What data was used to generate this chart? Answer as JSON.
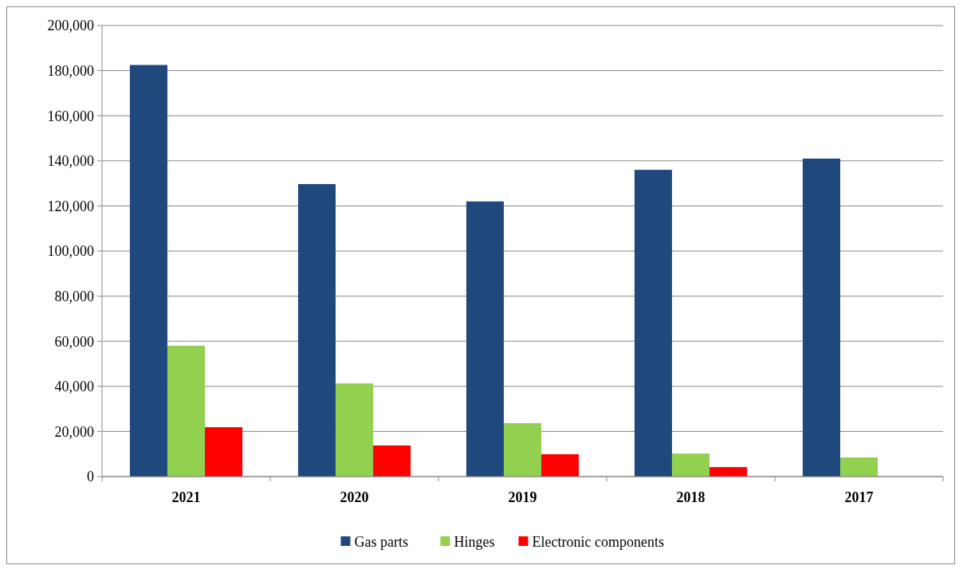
{
  "chart_data": {
    "type": "bar",
    "categories": [
      "2021",
      "2020",
      "2019",
      "2018",
      "2017"
    ],
    "series": [
      {
        "name": "Gas parts",
        "color": "#1f497d",
        "values": [
          182500,
          129700,
          122000,
          136000,
          141000
        ]
      },
      {
        "name": "Hinges",
        "color": "#92d050",
        "values": [
          58000,
          41300,
          23700,
          10200,
          8500
        ]
      },
      {
        "name": "Electronic components",
        "color": "#ff0000",
        "values": [
          21900,
          13800,
          9900,
          4200,
          null
        ]
      }
    ],
    "ylim": [
      0,
      200000
    ],
    "yticks": [
      {
        "value": 0,
        "label": "0"
      },
      {
        "value": 20000,
        "label": "20,000"
      },
      {
        "value": 40000,
        "label": "40,000"
      },
      {
        "value": 60000,
        "label": "60,000"
      },
      {
        "value": 80000,
        "label": "80,000"
      },
      {
        "value": 100000,
        "label": "100,000"
      },
      {
        "value": 120000,
        "label": "120,000"
      },
      {
        "value": 140000,
        "label": "140,000"
      },
      {
        "value": 160000,
        "label": "160,000"
      },
      {
        "value": 180000,
        "label": "180,000"
      },
      {
        "value": 200000,
        "label": "200,000"
      }
    ],
    "grid": "y",
    "legend": "bottom"
  }
}
